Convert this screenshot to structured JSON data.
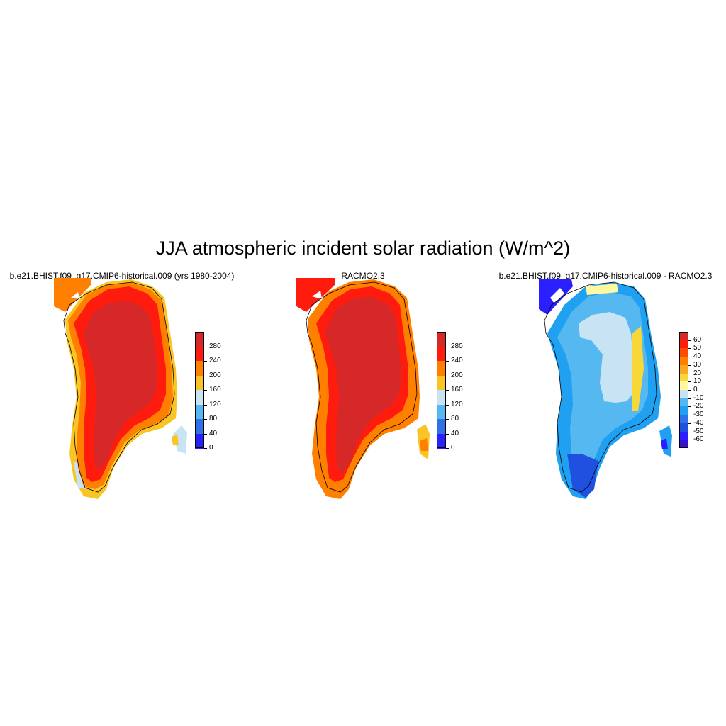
{
  "figure": {
    "title": "JJA atmospheric incident solar radiation (W/m^2)"
  },
  "panels": [
    {
      "title": "b.e21.BHIST.f09_g17.CMIP6-historical.009 (yrs 1980-2004)",
      "colorbar": {
        "labels": [
          "280",
          "240",
          "200",
          "160",
          "120",
          "80",
          "40",
          "0"
        ],
        "colors": [
          "#d62828",
          "#ff1c0e",
          "#ff8000",
          "#f8c426",
          "#c8e4f4",
          "#56b8f0",
          "#3070e8",
          "#2a1fff"
        ]
      }
    },
    {
      "title": "RACMO2.3",
      "colorbar": {
        "labels": [
          "280",
          "240",
          "200",
          "160",
          "120",
          "80",
          "40",
          "0"
        ],
        "colors": [
          "#d62828",
          "#ff1c0e",
          "#ff8000",
          "#f8c426",
          "#c8e4f4",
          "#56b8f0",
          "#3070e8",
          "#2a1fff"
        ]
      }
    },
    {
      "title": "b.e21.BHIST.f09_g17.CMIP6-historical.009 - RACMO2.3",
      "colorbar": {
        "labels": [
          "60",
          "50",
          "40",
          "30",
          "20",
          "10",
          "0",
          "-10",
          "-20",
          "-30",
          "-40",
          "-50",
          "-60"
        ],
        "colors": [
          "#d62828",
          "#ff1c0e",
          "#ff4a00",
          "#ff8000",
          "#f8a820",
          "#f8d838",
          "#fff8a0",
          "#c8e4f4",
          "#56b8f0",
          "#20a0f0",
          "#3070e8",
          "#2050e0",
          "#2a1fff",
          "#3a10d0"
        ]
      }
    }
  ]
}
